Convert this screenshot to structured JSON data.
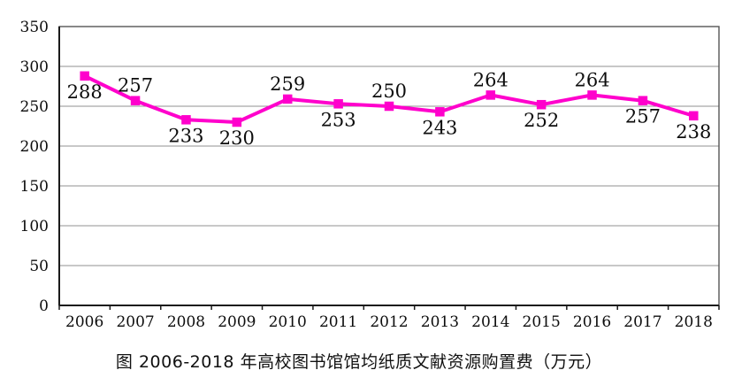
{
  "chart_data": {
    "type": "line",
    "title": "图  2006-2018 年高校图书馆馆均纸质文献资源购置费（万元）",
    "categories": [
      "2006",
      "2007",
      "2008",
      "2009",
      "2010",
      "2011",
      "2012",
      "2013",
      "2014",
      "2015",
      "2016",
      "2017",
      "2018"
    ],
    "values": [
      288,
      257,
      233,
      230,
      259,
      253,
      250,
      243,
      264,
      252,
      264,
      257,
      238
    ],
    "label_placement": [
      "below",
      "above",
      "below",
      "below",
      "above",
      "below",
      "above",
      "below",
      "above",
      "below",
      "above",
      "below",
      "below"
    ],
    "y_ticks": [
      0,
      50,
      100,
      150,
      200,
      250,
      300,
      350
    ],
    "ylim": [
      0,
      350
    ],
    "xlabel": "",
    "ylabel": "",
    "grid": true,
    "legend_position": "none",
    "marker": "square",
    "line_color": "#FF00CC",
    "marker_color": "#FF00CC",
    "gridline_color": "#909090",
    "frame_color": "#555555",
    "axis_color": "#1a1a1a",
    "label_color": "#0d0d0d"
  }
}
